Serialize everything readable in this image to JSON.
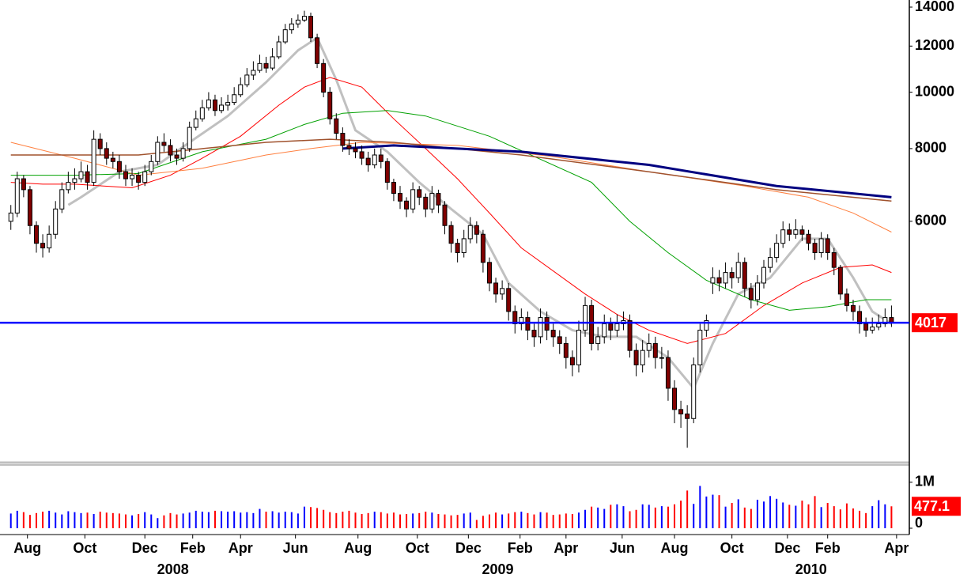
{
  "chart_data": {
    "type": "candlestick",
    "log": true,
    "xlim": [
      -1.7,
      140.8
    ],
    "ylim": [
      2310,
      14400
    ],
    "yticks": [
      6000,
      8000,
      10000,
      12000,
      14000
    ],
    "up_color": "#ffffff",
    "down_color": "#800000",
    "last_line_color": "#0000ff",
    "last_label_color": "#ff0000",
    "open": [
      6000,
      6200,
      7100,
      6800,
      5900,
      5500,
      5400,
      5700,
      6300,
      6800,
      7000,
      7100,
      7300,
      7000,
      8300,
      8000,
      7700,
      7600,
      7300,
      7100,
      7200,
      7000,
      7300,
      7600,
      8200,
      8100,
      7800,
      7700,
      8000,
      8700,
      9000,
      9400,
      9700,
      9300,
      9500,
      9600,
      9900,
      10300,
      10700,
      10900,
      11200,
      11000,
      11500,
      12200,
      12800,
      13100,
      13300,
      13500,
      12400,
      11200,
      10000,
      9000,
      8500,
      8100,
      8000,
      7900,
      7700,
      7500,
      7800,
      7600,
      7000,
      6700,
      6500,
      6300,
      6800,
      6600,
      6300,
      6700,
      6400,
      5900,
      5500,
      5300,
      5600,
      5900,
      5700,
      5100,
      4700,
      4500,
      4600,
      4200,
      4000,
      4100,
      3900,
      3800,
      4100,
      3900,
      3800,
      3700,
      3500,
      3400,
      3900,
      4300,
      3700,
      3800,
      4000,
      3900,
      4000,
      4050,
      3600,
      3400,
      3600,
      3700,
      3500,
      3500,
      3100,
      2850,
      2800,
      2750,
      3400,
      3900,
      4700,
      4800,
      4700,
      4900,
      4800,
      5100,
      4600,
      4400,
      4700,
      5000,
      5200,
      5500,
      5800,
      5700,
      5800,
      5700,
      5500,
      5300,
      5600,
      5300,
      5000,
      4500,
      4300,
      4200,
      4000,
      3900,
      3950,
      4000,
      4100
    ],
    "high": [
      6400,
      7300,
      7200,
      6900,
      6000,
      5700,
      5900,
      6500,
      7000,
      7300,
      7400,
      7600,
      7500,
      8600,
      8500,
      8200,
      7900,
      7800,
      7500,
      7400,
      7300,
      7500,
      7800,
      8400,
      8500,
      8300,
      8000,
      8200,
      8900,
      9300,
      9700,
      10000,
      9900,
      9800,
      9900,
      10200,
      10600,
      11000,
      11300,
      11600,
      11500,
      11900,
      12500,
      13100,
      13400,
      13600,
      13800,
      13700,
      12600,
      11400,
      10200,
      9200,
      8700,
      8300,
      8200,
      8100,
      7900,
      8000,
      8000,
      7700,
      7100,
      6900,
      6600,
      7000,
      6900,
      6700,
      6900,
      6800,
      6500,
      6000,
      5600,
      5800,
      6100,
      6000,
      5800,
      5200,
      4800,
      4750,
      4700,
      4300,
      4250,
      4200,
      4000,
      4250,
      4200,
      4000,
      3900,
      3800,
      3600,
      4050,
      4450,
      4400,
      3950,
      4150,
      4100,
      4150,
      4200,
      4150,
      3700,
      3750,
      3850,
      3800,
      3650,
      3600,
      3200,
      2950,
      2900,
      3500,
      4000,
      4150,
      5000,
      4950,
      5100,
      5000,
      5300,
      5200,
      4700,
      4850,
      5150,
      5400,
      5700,
      6000,
      5950,
      6050,
      5900,
      5800,
      5600,
      5750,
      5700,
      5400,
      5050,
      4600,
      4400,
      4300,
      4100,
      4100,
      4150,
      4250,
      4300
    ],
    "low": [
      5800,
      6100,
      6600,
      5700,
      5300,
      5200,
      5300,
      5600,
      6200,
      6700,
      6800,
      7000,
      6800,
      6900,
      7800,
      7500,
      7400,
      7100,
      6900,
      6900,
      6800,
      6900,
      7200,
      7500,
      7900,
      7600,
      7500,
      7600,
      7900,
      8600,
      8900,
      9300,
      9100,
      9200,
      9300,
      9500,
      9800,
      10200,
      10500,
      10800,
      10800,
      10900,
      11400,
      12100,
      12600,
      12900,
      13200,
      12200,
      11000,
      9800,
      8800,
      8300,
      7900,
      7800,
      7700,
      7500,
      7300,
      7400,
      7400,
      6800,
      6500,
      6300,
      6100,
      6200,
      6400,
      6100,
      6200,
      6200,
      5700,
      5300,
      5100,
      5200,
      5500,
      5500,
      4900,
      4550,
      4350,
      4400,
      4050,
      3850,
      3900,
      3750,
      3650,
      3700,
      3750,
      3650,
      3550,
      3350,
      3250,
      3300,
      3800,
      3600,
      3600,
      3700,
      3750,
      3800,
      3900,
      3500,
      3250,
      3300,
      3500,
      3350,
      3350,
      2950,
      2700,
      2650,
      2450,
      2700,
      3300,
      3800,
      4500,
      4550,
      4600,
      4600,
      4700,
      4450,
      4250,
      4300,
      4600,
      4900,
      5100,
      5400,
      5550,
      5600,
      5550,
      5350,
      5150,
      5200,
      5150,
      4850,
      4400,
      4200,
      4050,
      3850,
      3800,
      3850,
      3900,
      3950,
      3950
    ],
    "close": [
      6200,
      7100,
      6800,
      5900,
      5500,
      5400,
      5700,
      6300,
      6800,
      7000,
      7100,
      7300,
      7000,
      8300,
      8000,
      7700,
      7600,
      7300,
      7100,
      7200,
      7000,
      7300,
      7600,
      8200,
      8100,
      7800,
      7700,
      8000,
      8700,
      9000,
      9400,
      9700,
      9300,
      9500,
      9600,
      9900,
      10300,
      10700,
      10900,
      11200,
      11000,
      11500,
      12200,
      12800,
      13100,
      13300,
      13500,
      12400,
      11200,
      10000,
      9000,
      8500,
      8100,
      8000,
      7900,
      7700,
      7500,
      7800,
      7600,
      7000,
      6700,
      6500,
      6300,
      6800,
      6600,
      6300,
      6700,
      6400,
      5900,
      5500,
      5300,
      5600,
      5900,
      5700,
      5100,
      4700,
      4500,
      4600,
      4200,
      4000,
      4100,
      3900,
      3800,
      4100,
      3900,
      3800,
      3700,
      3500,
      3400,
      3900,
      4300,
      3700,
      3800,
      4000,
      3900,
      4000,
      4050,
      3600,
      3400,
      3600,
      3700,
      3500,
      3500,
      3100,
      2850,
      2800,
      2750,
      3400,
      3900,
      4050,
      4800,
      4700,
      4900,
      4800,
      5100,
      4600,
      4400,
      4700,
      5000,
      5200,
      5500,
      5800,
      5700,
      5800,
      5700,
      5500,
      5300,
      5600,
      5300,
      5000,
      4500,
      4300,
      4200,
      4000,
      3900,
      3950,
      4000,
      4100,
      4017
    ],
    "ma": [
      {
        "color": "#c0c0c0",
        "width": 3,
        "x": [
          9,
          11,
          17,
          23,
          28,
          34,
          40,
          45,
          48,
          51,
          54,
          59,
          64,
          69,
          74,
          78,
          83,
          88,
          93,
          98,
          103,
          107,
          110,
          114,
          119,
          124,
          128,
          132,
          135,
          138
        ],
        "values": [
          6400,
          6600,
          7300,
          7500,
          8200,
          9100,
          10400,
          11800,
          12400,
          10500,
          8600,
          7900,
          7000,
          6300,
          5700,
          4700,
          4200,
          3900,
          3800,
          3800,
          3500,
          3100,
          3700,
          4500,
          4800,
          5600,
          5600,
          4800,
          4200,
          4000
        ]
      },
      {
        "color": "#ff0000",
        "width": 1,
        "x": [
          0,
          5,
          10,
          19,
          25,
          30,
          36,
          42,
          46,
          50,
          55,
          60,
          65,
          70,
          75,
          80,
          90,
          95,
          100,
          106,
          112,
          118,
          124,
          130,
          135,
          138
        ],
        "values": [
          7000,
          6950,
          6950,
          6850,
          7200,
          7700,
          8400,
          9500,
          10200,
          10600,
          10200,
          9000,
          8000,
          7100,
          6200,
          5400,
          4500,
          4150,
          3900,
          3700,
          3850,
          4300,
          4700,
          5000,
          5050,
          4900
        ]
      },
      {
        "color": "#00a000",
        "width": 1,
        "x": [
          0,
          10,
          20,
          30,
          40,
          46,
          52,
          59,
          65,
          75,
          91,
          97,
          103,
          109,
          116,
          122,
          128,
          134,
          138
        ],
        "values": [
          7200,
          7200,
          7250,
          7900,
          8300,
          8800,
          9200,
          9300,
          9100,
          8400,
          7000,
          6000,
          5300,
          4750,
          4400,
          4220,
          4280,
          4400,
          4400
        ]
      },
      {
        "color": "#ff8040",
        "width": 1,
        "x": [
          0,
          10,
          20,
          30,
          40,
          47,
          55,
          70,
          85,
          100,
          115,
          125,
          132,
          138
        ],
        "values": [
          8200,
          7700,
          7200,
          7400,
          7800,
          8000,
          8200,
          8100,
          7750,
          7300,
          6900,
          6600,
          6200,
          5750
        ]
      },
      {
        "color": "#a0522d",
        "width": 1.5,
        "x": [
          0,
          20,
          40,
          50,
          60,
          80,
          100,
          120,
          138
        ],
        "values": [
          7800,
          7800,
          8200,
          8300,
          8200,
          7800,
          7300,
          6800,
          6500
        ]
      },
      {
        "color": "#000080",
        "width": 3,
        "x": [
          52,
          60,
          80,
          100,
          120,
          138
        ],
        "values": [
          8000,
          8100,
          7900,
          7500,
          6900,
          6600
        ]
      }
    ],
    "volume": {
      "ylim": [
        0,
        1170
      ],
      "yticks": [
        {
          "value": 1000,
          "label": "1M"
        },
        0
      ],
      "up_color": "#0000ff",
      "down_color": "#ff0000",
      "values": [
        320,
        380,
        350,
        290,
        330,
        360,
        380,
        340,
        300,
        370,
        350,
        330,
        340,
        310,
        360,
        340,
        330,
        320,
        300,
        280,
        310,
        350,
        300,
        220,
        280,
        330,
        300,
        320,
        340,
        380,
        360,
        350,
        380,
        370,
        360,
        370,
        340,
        350,
        330,
        420,
        360,
        370,
        340,
        360,
        350,
        320,
        470,
        460,
        440,
        400,
        350,
        330,
        360,
        380,
        340,
        310,
        330,
        360,
        350,
        320,
        340,
        300,
        310,
        320,
        330,
        360,
        340,
        310,
        300,
        280,
        290,
        320,
        340,
        180,
        270,
        300,
        340,
        300,
        320,
        350,
        360,
        330,
        300,
        350,
        340,
        290,
        300,
        320,
        310,
        340,
        400,
        470,
        450,
        420,
        510,
        520,
        480,
        370,
        400,
        520,
        510,
        450,
        480,
        470,
        520,
        600,
        820,
        530,
        920,
        690,
        730,
        720,
        470,
        550,
        630,
        450,
        420,
        620,
        580,
        700,
        640,
        560,
        510,
        490,
        600,
        520,
        700,
        460,
        550,
        480,
        410,
        540,
        430,
        380,
        330,
        480,
        610,
        520,
        477.1
      ]
    },
    "xticks": [
      {
        "value": 2.6,
        "label": "Aug"
      },
      {
        "value": 11.6,
        "label": "Oct"
      },
      {
        "value": 21,
        "label": "Dec"
      },
      {
        "value": 28.5,
        "label": "Feb"
      },
      {
        "value": 36,
        "label": "Apr"
      },
      {
        "value": 44.6,
        "label": "Jun"
      },
      {
        "value": 54.4,
        "label": "Aug"
      },
      {
        "value": 63.7,
        "label": "Oct"
      },
      {
        "value": 71.7,
        "label": "Dec"
      },
      {
        "value": 79.8,
        "label": "Feb"
      },
      {
        "value": 87,
        "label": "Apr"
      },
      {
        "value": 95.8,
        "label": "Jun"
      },
      {
        "value": 104,
        "label": "Aug"
      },
      {
        "value": 113,
        "label": "Oct"
      },
      {
        "value": 121.7,
        "label": "Dec"
      },
      {
        "value": 128,
        "label": "Feb"
      },
      {
        "value": 138.8,
        "label": "Apr"
      }
    ],
    "year_ticks": [
      {
        "value": 25.4,
        "label": "2008"
      },
      {
        "value": 76.3,
        "label": "2009"
      },
      {
        "value": 125.4,
        "label": "2010"
      }
    ]
  }
}
